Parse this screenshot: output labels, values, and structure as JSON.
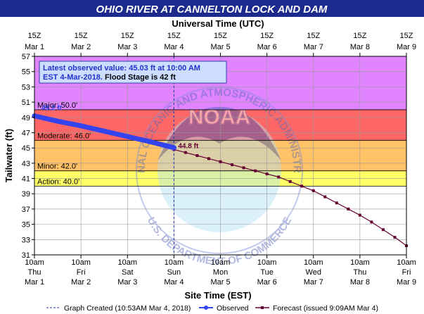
{
  "header": {
    "title": "OHIO RIVER AT CANNELTON LOCK AND DAM",
    "bg_color": "#1b2a8c"
  },
  "info_box": {
    "line1": "Latest observed value: 45.03 ft at 10:00 AM",
    "line2_blue": "EST 4-Mar-2018.",
    "line2_black": " Flood Stage is 42 ft"
  },
  "watermark": {
    "logo_text": "NOAA",
    "top_arc": "NATIONAL OCEANIC AND ATMOSPHERIC ADMINISTRATION",
    "bottom_arc": "U.S. DEPARTMENT OF COMMERCE"
  },
  "chart_data": {
    "type": "line",
    "top_axis_title": "Universal Time (UTC)",
    "top_ticks": [
      {
        "hour": "15Z",
        "date": "Mar 1"
      },
      {
        "hour": "15Z",
        "date": "Mar 2"
      },
      {
        "hour": "15Z",
        "date": "Mar 3"
      },
      {
        "hour": "15Z",
        "date": "Mar 4"
      },
      {
        "hour": "15Z",
        "date": "Mar 5"
      },
      {
        "hour": "15Z",
        "date": "Mar 6"
      },
      {
        "hour": "15Z",
        "date": "Mar 7"
      },
      {
        "hour": "15Z",
        "date": "Mar 8"
      },
      {
        "hour": "15Z",
        "date": "Mar 9"
      }
    ],
    "bottom_axis_title": "Site Time (EST)",
    "bottom_ticks": [
      {
        "time": "10am",
        "day": "Thu",
        "date": "Mar 1"
      },
      {
        "time": "10am",
        "day": "Fri",
        "date": "Mar 2"
      },
      {
        "time": "10am",
        "day": "Sat",
        "date": "Mar 3"
      },
      {
        "time": "10am",
        "day": "Sun",
        "date": "Mar 4"
      },
      {
        "time": "10am",
        "day": "Mon",
        "date": "Mar 5"
      },
      {
        "time": "10am",
        "day": "Tue",
        "date": "Mar 6"
      },
      {
        "time": "10am",
        "day": "Wed",
        "date": "Mar 7"
      },
      {
        "time": "10am",
        "day": "Thu",
        "date": "Mar 8"
      },
      {
        "time": "10am",
        "day": "Fri",
        "date": "Mar 9"
      }
    ],
    "ylabel": "Tailwater (ft)",
    "ylim": [
      31,
      57
    ],
    "yticks": [
      31,
      33,
      35,
      37,
      39,
      41,
      43,
      45,
      47,
      49,
      51,
      53,
      55,
      57
    ],
    "x_range_days": [
      0,
      8
    ],
    "stage_bands": [
      {
        "label": "Action: 40.0'",
        "from": 40,
        "to": 42,
        "color": "#ffff00"
      },
      {
        "label": "Minor: 42.0'",
        "from": 42,
        "to": 46,
        "color": "#ff9900"
      },
      {
        "label": "Moderate: 46.0'",
        "from": 46,
        "to": 50,
        "color": "#ff0000"
      },
      {
        "label": "Major: 50.0'",
        "from": 50,
        "to": 57,
        "color": "#cc33ff"
      }
    ],
    "observed": {
      "name": "Observed",
      "color": "#3344ee",
      "points": [
        [
          0,
          49.2
        ],
        [
          0.5,
          48.5
        ],
        [
          1,
          47.9
        ],
        [
          1.5,
          47.2
        ],
        [
          2,
          46.5
        ],
        [
          2.5,
          45.8
        ],
        [
          3,
          45.03
        ]
      ],
      "start_label": "49.2 ft"
    },
    "forecast": {
      "name": "Forecast (issued 9:09AM Mar 4)",
      "color": "#660033",
      "start_label": "44.8 ft",
      "points": [
        [
          3.0,
          44.8
        ],
        [
          3.25,
          44.4
        ],
        [
          3.5,
          44.0
        ],
        [
          3.75,
          43.6
        ],
        [
          4.0,
          43.2
        ],
        [
          4.25,
          42.8
        ],
        [
          4.5,
          42.4
        ],
        [
          4.75,
          42.0
        ],
        [
          5.0,
          41.6
        ],
        [
          5.25,
          41.2
        ],
        [
          5.5,
          40.6
        ],
        [
          5.75,
          40.0
        ],
        [
          6.0,
          39.4
        ],
        [
          6.25,
          38.6
        ],
        [
          6.5,
          37.8
        ],
        [
          6.75,
          37.0
        ],
        [
          7.0,
          36.2
        ],
        [
          7.25,
          35.3
        ],
        [
          7.5,
          34.3
        ],
        [
          7.75,
          33.3
        ],
        [
          8.0,
          32.2
        ]
      ]
    },
    "graph_created_day": 3
  },
  "legend": {
    "created": "Graph Created (10:53AM Mar 4, 2018)",
    "observed": "Observed",
    "forecast": "Forecast (issued 9:09AM Mar 4)"
  }
}
